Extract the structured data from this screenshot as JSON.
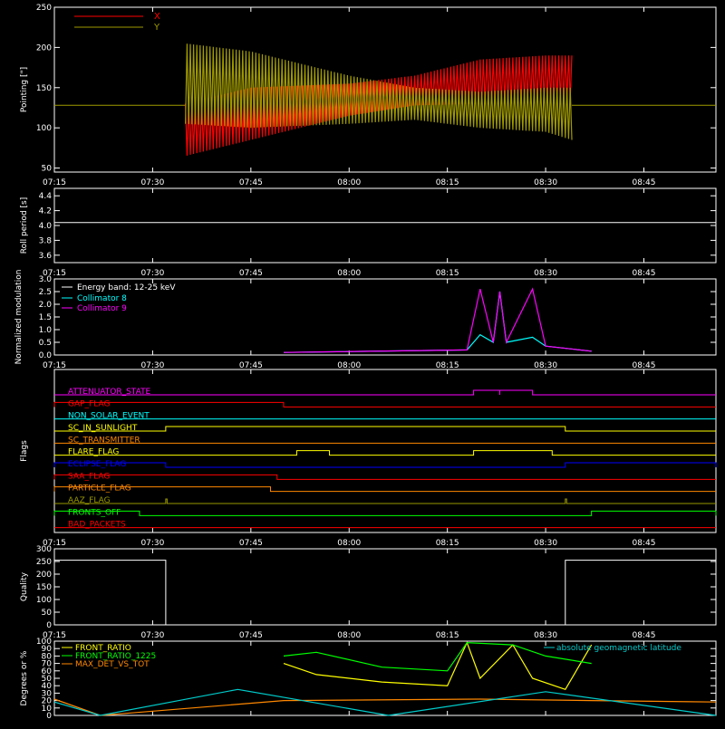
{
  "colors": {
    "background": "#000000",
    "frame": "#ffffff",
    "x_series": "#ff0000",
    "y_series": "#a09a00",
    "collimator8": "#00ffff",
    "collimator9": "#ff00ff",
    "energy_band": "#ffffff",
    "front_ratio": "#ffff00",
    "front_ratio_1225": "#00ff00",
    "max_det_vs_tot": "#ff8800",
    "geomag_lat": "#00cccc"
  },
  "time_ticks": [
    "07:15",
    "07:30",
    "07:45",
    "08:00",
    "08:15",
    "08:30",
    "08:45"
  ],
  "chart_data": [
    {
      "type": "line",
      "ylabel": "Pointing [\"]",
      "ylim": [
        45,
        250
      ],
      "yticks": [
        "50",
        "100",
        "150",
        "200",
        "250"
      ],
      "legend_placement": "top-left",
      "series": [
        {
          "name": "X",
          "x": [
            "07:35",
            "07:45",
            "08:00",
            "08:10",
            "08:20",
            "08:30",
            "08:34"
          ],
          "min": [
            65,
            85,
            115,
            128,
            130,
            135,
            135
          ],
          "max": [
            130,
            150,
            155,
            165,
            185,
            190,
            190
          ],
          "outside_value": 128
        },
        {
          "name": "Y",
          "x": [
            "07:35",
            "07:45",
            "08:00",
            "08:10",
            "08:20",
            "08:30",
            "08:34"
          ],
          "min": [
            105,
            100,
            105,
            110,
            100,
            95,
            85
          ],
          "max": [
            205,
            195,
            165,
            150,
            145,
            150,
            150
          ]
        }
      ]
    },
    {
      "type": "line",
      "ylabel": "Roll period [s]",
      "ylim": [
        3.5,
        4.5
      ],
      "yticks": [
        "3.6",
        "3.8",
        "4.0",
        "4.2",
        "4.4"
      ],
      "series": [
        {
          "x": [
            "07:15",
            "08:56"
          ],
          "y": [
            4.04,
            4.04
          ]
        }
      ]
    },
    {
      "type": "line",
      "ylabel": "Normalized modulation",
      "ylim": [
        0,
        3.0
      ],
      "yticks": [
        "0.0",
        "0.5",
        "1.0",
        "1.5",
        "2.0",
        "2.5",
        "3.0"
      ],
      "legend_title": "Energy band: 12-25 keV",
      "legend_placement": "top-left",
      "series": [
        {
          "name": "Collimator 8",
          "x": [
            "07:50",
            "08:18",
            "08:20",
            "08:22",
            "08:23",
            "08:24",
            "08:28",
            "08:30",
            "08:37"
          ],
          "y": [
            0.1,
            0.2,
            0.8,
            0.5,
            2.5,
            0.5,
            0.7,
            0.35,
            0.15
          ]
        },
        {
          "name": "Collimator 9",
          "x": [
            "07:50",
            "08:18",
            "08:20",
            "08:22",
            "08:23",
            "08:24",
            "08:28",
            "08:30",
            "08:37"
          ],
          "y": [
            0.1,
            0.2,
            2.6,
            0.5,
            2.5,
            0.5,
            2.6,
            0.35,
            0.15
          ]
        }
      ]
    },
    {
      "type": "table",
      "ylabel": "Flags",
      "flags": [
        {
          "name": "ATTENUATOR_STATE",
          "color": "#ff00ff",
          "on": [
            [
              "08:19",
              "08:23"
            ],
            [
              "08:23",
              "08:28"
            ]
          ]
        },
        {
          "name": "GAP_FLAG",
          "color": "#ff0000",
          "on": [
            [
              "07:15",
              "07:50"
            ]
          ]
        },
        {
          "name": "NON_SOLAR_EVENT",
          "color": "#00ffff",
          "on": []
        },
        {
          "name": "SC_IN_SUNLIGHT",
          "color": "#ffff00",
          "on": [
            [
              "07:32",
              "08:33"
            ]
          ]
        },
        {
          "name": "SC_TRANSMITTER",
          "color": "#ff8800",
          "on": []
        },
        {
          "name": "FLARE_FLAG",
          "color": "#ffff00",
          "on": [
            [
              "07:52",
              "07:57"
            ],
            [
              "08:19",
              "08:31"
            ]
          ]
        },
        {
          "name": "ECLIPSE_FLAG",
          "color": "#0000ff",
          "on": [
            [
              "07:15",
              "07:32"
            ],
            [
              "08:33",
              "08:56"
            ]
          ]
        },
        {
          "name": "SAA_FLAG",
          "color": "#ff0000",
          "on": [
            [
              "07:15",
              "07:49"
            ]
          ]
        },
        {
          "name": "PARTICLE_FLAG",
          "color": "#ff8800",
          "on": [
            [
              "07:15",
              "07:48"
            ]
          ]
        },
        {
          "name": "AAZ_FLAG",
          "color": "#999900",
          "on": [
            [
              "07:32",
              "07:32"
            ],
            [
              "08:33",
              "08:33"
            ]
          ]
        },
        {
          "name": "FRONTS_OFF",
          "color": "#00ff00",
          "on": [
            [
              "07:15",
              "07:28"
            ],
            [
              "08:37",
              "08:56"
            ]
          ]
        },
        {
          "name": "BAD_PACKETS",
          "color": "#ff0000",
          "on": []
        }
      ]
    },
    {
      "type": "line",
      "ylabel": "Quality",
      "ylim": [
        0,
        300
      ],
      "yticks": [
        "0",
        "50",
        "100",
        "150",
        "200",
        "250",
        "300"
      ],
      "series": [
        {
          "x": [
            "07:15",
            "07:32",
            "07:32",
            "08:33",
            "08:33",
            "08:56"
          ],
          "y": [
            255,
            255,
            0,
            0,
            255,
            255
          ]
        }
      ]
    },
    {
      "type": "line",
      "ylabel": "Degrees or %",
      "ylim": [
        0,
        100
      ],
      "yticks": [
        "0",
        "10",
        "20",
        "30",
        "40",
        "50",
        "60",
        "70",
        "80",
        "90",
        "100"
      ],
      "legend_placement": "top-left",
      "series": [
        {
          "name": "FRONT_RATIO",
          "x": [
            "07:50",
            "07:55",
            "08:05",
            "08:15",
            "08:18",
            "08:20",
            "08:25",
            "08:28",
            "08:33",
            "08:37"
          ],
          "y": [
            70,
            55,
            45,
            40,
            98,
            50,
            95,
            50,
            35,
            95
          ]
        },
        {
          "name": "FRONT_RATIO_1225",
          "x": [
            "07:50",
            "07:55",
            "08:05",
            "08:15",
            "08:18",
            "08:25",
            "08:30",
            "08:37"
          ],
          "y": [
            80,
            85,
            65,
            60,
            98,
            95,
            80,
            70
          ]
        },
        {
          "name": "MAX_DET_VS_TOT",
          "x": [
            "07:15",
            "07:22",
            "07:50",
            "08:20",
            "08:37",
            "08:56"
          ],
          "y": [
            22,
            0,
            20,
            22,
            20,
            18
          ]
        },
        {
          "name": "absolute geomagnetic latitude",
          "x": [
            "07:15",
            "07:22",
            "07:43",
            "08:06",
            "08:30",
            "08:56"
          ],
          "y": [
            18,
            0,
            35,
            0,
            32,
            0
          ]
        }
      ]
    }
  ]
}
